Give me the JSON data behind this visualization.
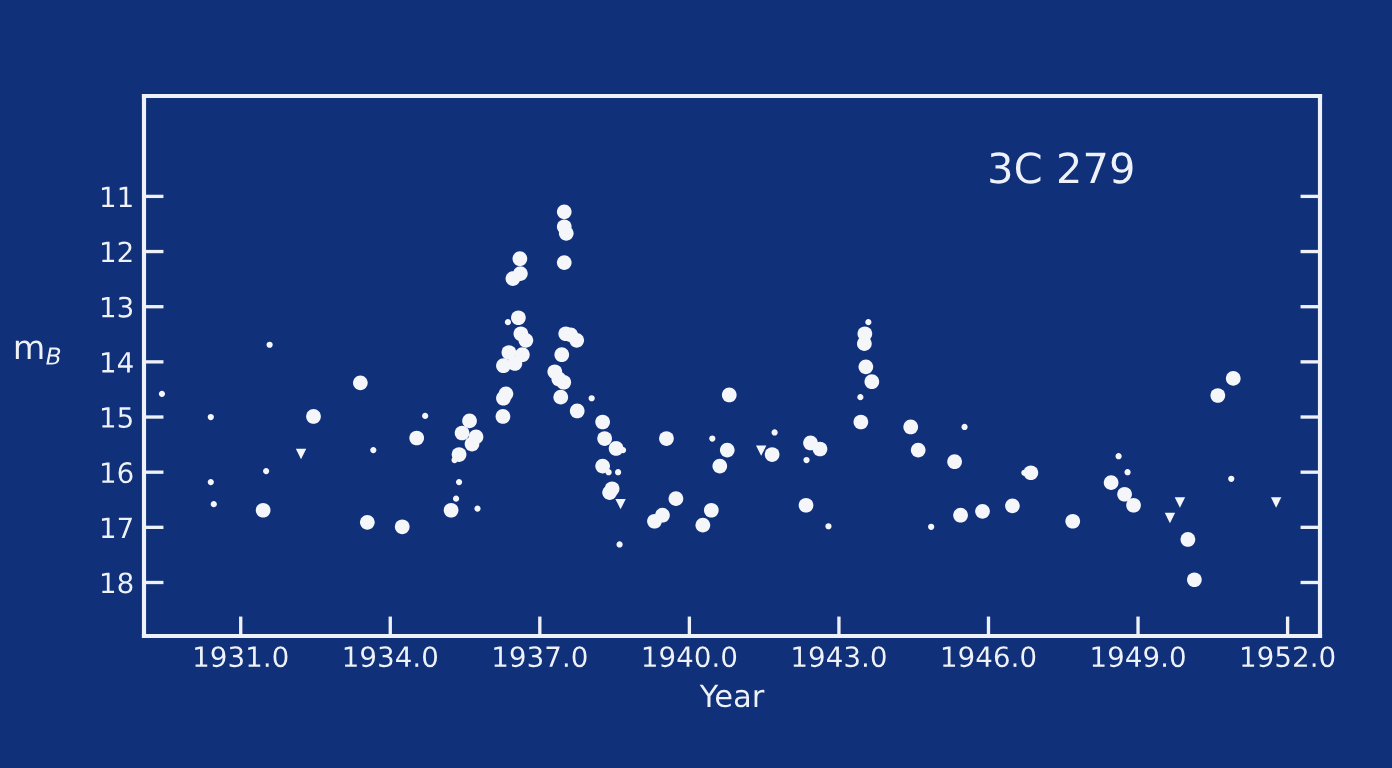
{
  "chart_data": {
    "type": "scatter",
    "xlabel": "Year",
    "ylabel": "m$_{B}$",
    "annotations": [
      "3C 279"
    ],
    "xlim": [
      1929.06,
      1952.65
    ],
    "ylim": [
      18.97,
      9.18
    ],
    "xticks": [
      {
        "value": 1931,
        "label": "1931.0"
      },
      {
        "value": 1934,
        "label": "1934.0"
      },
      {
        "value": 1937,
        "label": "1937.0"
      },
      {
        "value": 1940,
        "label": "1940.0"
      },
      {
        "value": 1943,
        "label": "1943.0"
      },
      {
        "value": 1946,
        "label": "1946.0"
      },
      {
        "value": 1949,
        "label": "1949.0"
      },
      {
        "value": 1952,
        "label": "1952.0"
      }
    ],
    "yticks": [
      11,
      12,
      13,
      14,
      15,
      16,
      17,
      18
    ],
    "grid": false,
    "legend": false,
    "series": [
      {
        "color": "#f4f6fa",
        "marker": "circle",
        "x": [
          1933.4,
          1932.46,
          1931.45,
          1933.54,
          1934.24,
          1934.53,
          1935.59,
          1935.44,
          1935.72,
          1935.64,
          1935.38,
          1935.22,
          1936.26,
          1936.27,
          1936.32,
          1936.27,
          1936.38,
          1936.5,
          1936.65,
          1936.57,
          1936.62,
          1936.72,
          1936.46,
          1936.61,
          1936.6,
          1937.49,
          1937.49,
          1937.53,
          1937.49,
          1937.62,
          1937.52,
          1937.74,
          1937.44,
          1937.3,
          1937.38,
          1937.48,
          1937.42,
          1937.75,
          1938.26,
          1938.3,
          1938.53,
          1938.26,
          1938.45,
          1938.4,
          1939.54,
          1939.73,
          1939.46,
          1939.3,
          1940.44,
          1940.27,
          1940.8,
          1940.76,
          1940.61,
          1941.66,
          1942.43,
          1942.62,
          1942.34,
          1943.52,
          1943.51,
          1943.54,
          1943.66,
          1943.44,
          1944.44,
          1944.59,
          1945.32,
          1946.85,
          1945.44,
          1945.88,
          1946.48,
          1947.69,
          1948.46,
          1948.73,
          1948.91,
          1950.0,
          1950.13,
          1950.6,
          1950.91
        ],
        "values": [
          14.38,
          14.99,
          16.69,
          16.91,
          16.99,
          15.38,
          15.07,
          15.29,
          15.36,
          15.49,
          15.68,
          16.69,
          14.99,
          14.66,
          14.58,
          14.07,
          13.83,
          14.03,
          13.87,
          13.2,
          13.49,
          13.61,
          12.49,
          12.4,
          12.13,
          11.28,
          11.55,
          11.67,
          12.2,
          13.51,
          13.49,
          13.61,
          13.87,
          14.18,
          14.31,
          14.37,
          14.64,
          14.89,
          15.09,
          15.39,
          15.57,
          15.89,
          16.3,
          16.37,
          15.39,
          16.48,
          16.78,
          16.89,
          16.69,
          16.96,
          14.6,
          15.6,
          15.89,
          15.68,
          15.47,
          15.58,
          16.6,
          13.49,
          13.67,
          14.09,
          14.36,
          15.09,
          15.18,
          15.6,
          15.81,
          16.01,
          16.78,
          16.71,
          16.61,
          16.89,
          16.19,
          16.4,
          16.6,
          17.22,
          17.95,
          14.61,
          14.3
        ]
      },
      {
        "color": "#f4f6fa",
        "marker": "circle",
        "x": [
          1929.42,
          1930.4,
          1930.4,
          1930.46,
          1931.58,
          1933.66,
          1931.51,
          1934.7,
          1935.29,
          1935.38,
          1935.32,
          1935.75,
          1936.36,
          1938.04,
          1938.67,
          1938.38,
          1938.57,
          1938.6,
          1940.46,
          1941.71,
          1942.35,
          1942.79,
          1943.59,
          1943.43,
          1945.52,
          1946.72,
          1944.85,
          1948.61,
          1948.79,
          1950.87
        ],
        "values": [
          14.58,
          15.0,
          16.18,
          16.58,
          13.69,
          15.6,
          15.98,
          14.98,
          15.78,
          16.18,
          16.48,
          16.66,
          13.28,
          14.66,
          15.6,
          16.0,
          16.0,
          17.31,
          15.39,
          15.28,
          15.78,
          16.98,
          13.28,
          14.64,
          15.18,
          16.01,
          16.99,
          15.71,
          16.0,
          16.12
        ]
      },
      {
        "color": "#f4f6fa",
        "marker": "triangle",
        "x": [
          1932.21,
          1938.62,
          1941.44,
          1949.84,
          1949.64,
          1951.77
        ],
        "values": [
          15.67,
          16.58,
          15.61,
          16.55,
          16.83,
          16.55
        ]
      }
    ]
  }
}
